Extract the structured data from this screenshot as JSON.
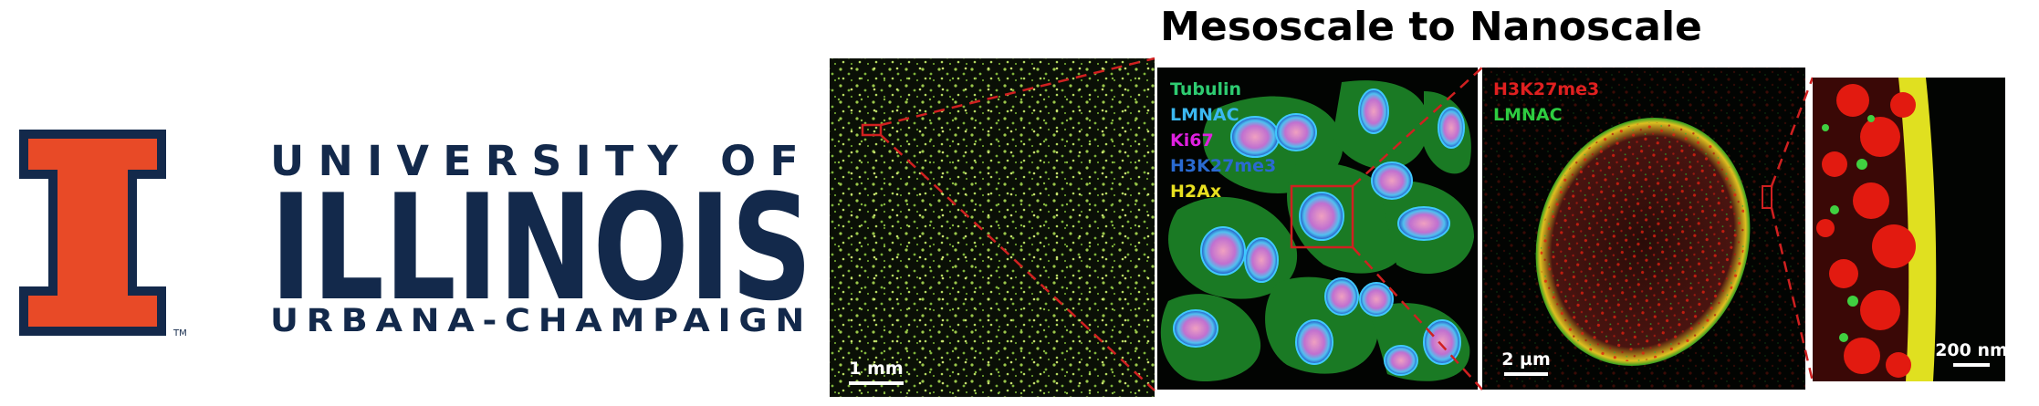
{
  "logo": {
    "trademark": "TM",
    "line1": "UNIVERSITY OF",
    "line2": "ILLINOIS",
    "line3": "URBANA-CHAMPAIGN"
  },
  "title": "Mesoscale to Nanoscale",
  "panels": [
    {
      "scale_bar": "1 mm"
    },
    {
      "labels": [
        "Tubulin",
        "LMNAC",
        "Ki67",
        "H3K27me3",
        "H2Ax"
      ]
    },
    {
      "labels": [
        "H3K27me3",
        "LMNAC"
      ],
      "scale_bar": "2 µm"
    },
    {
      "scale_bar": "200 nm"
    }
  ]
}
